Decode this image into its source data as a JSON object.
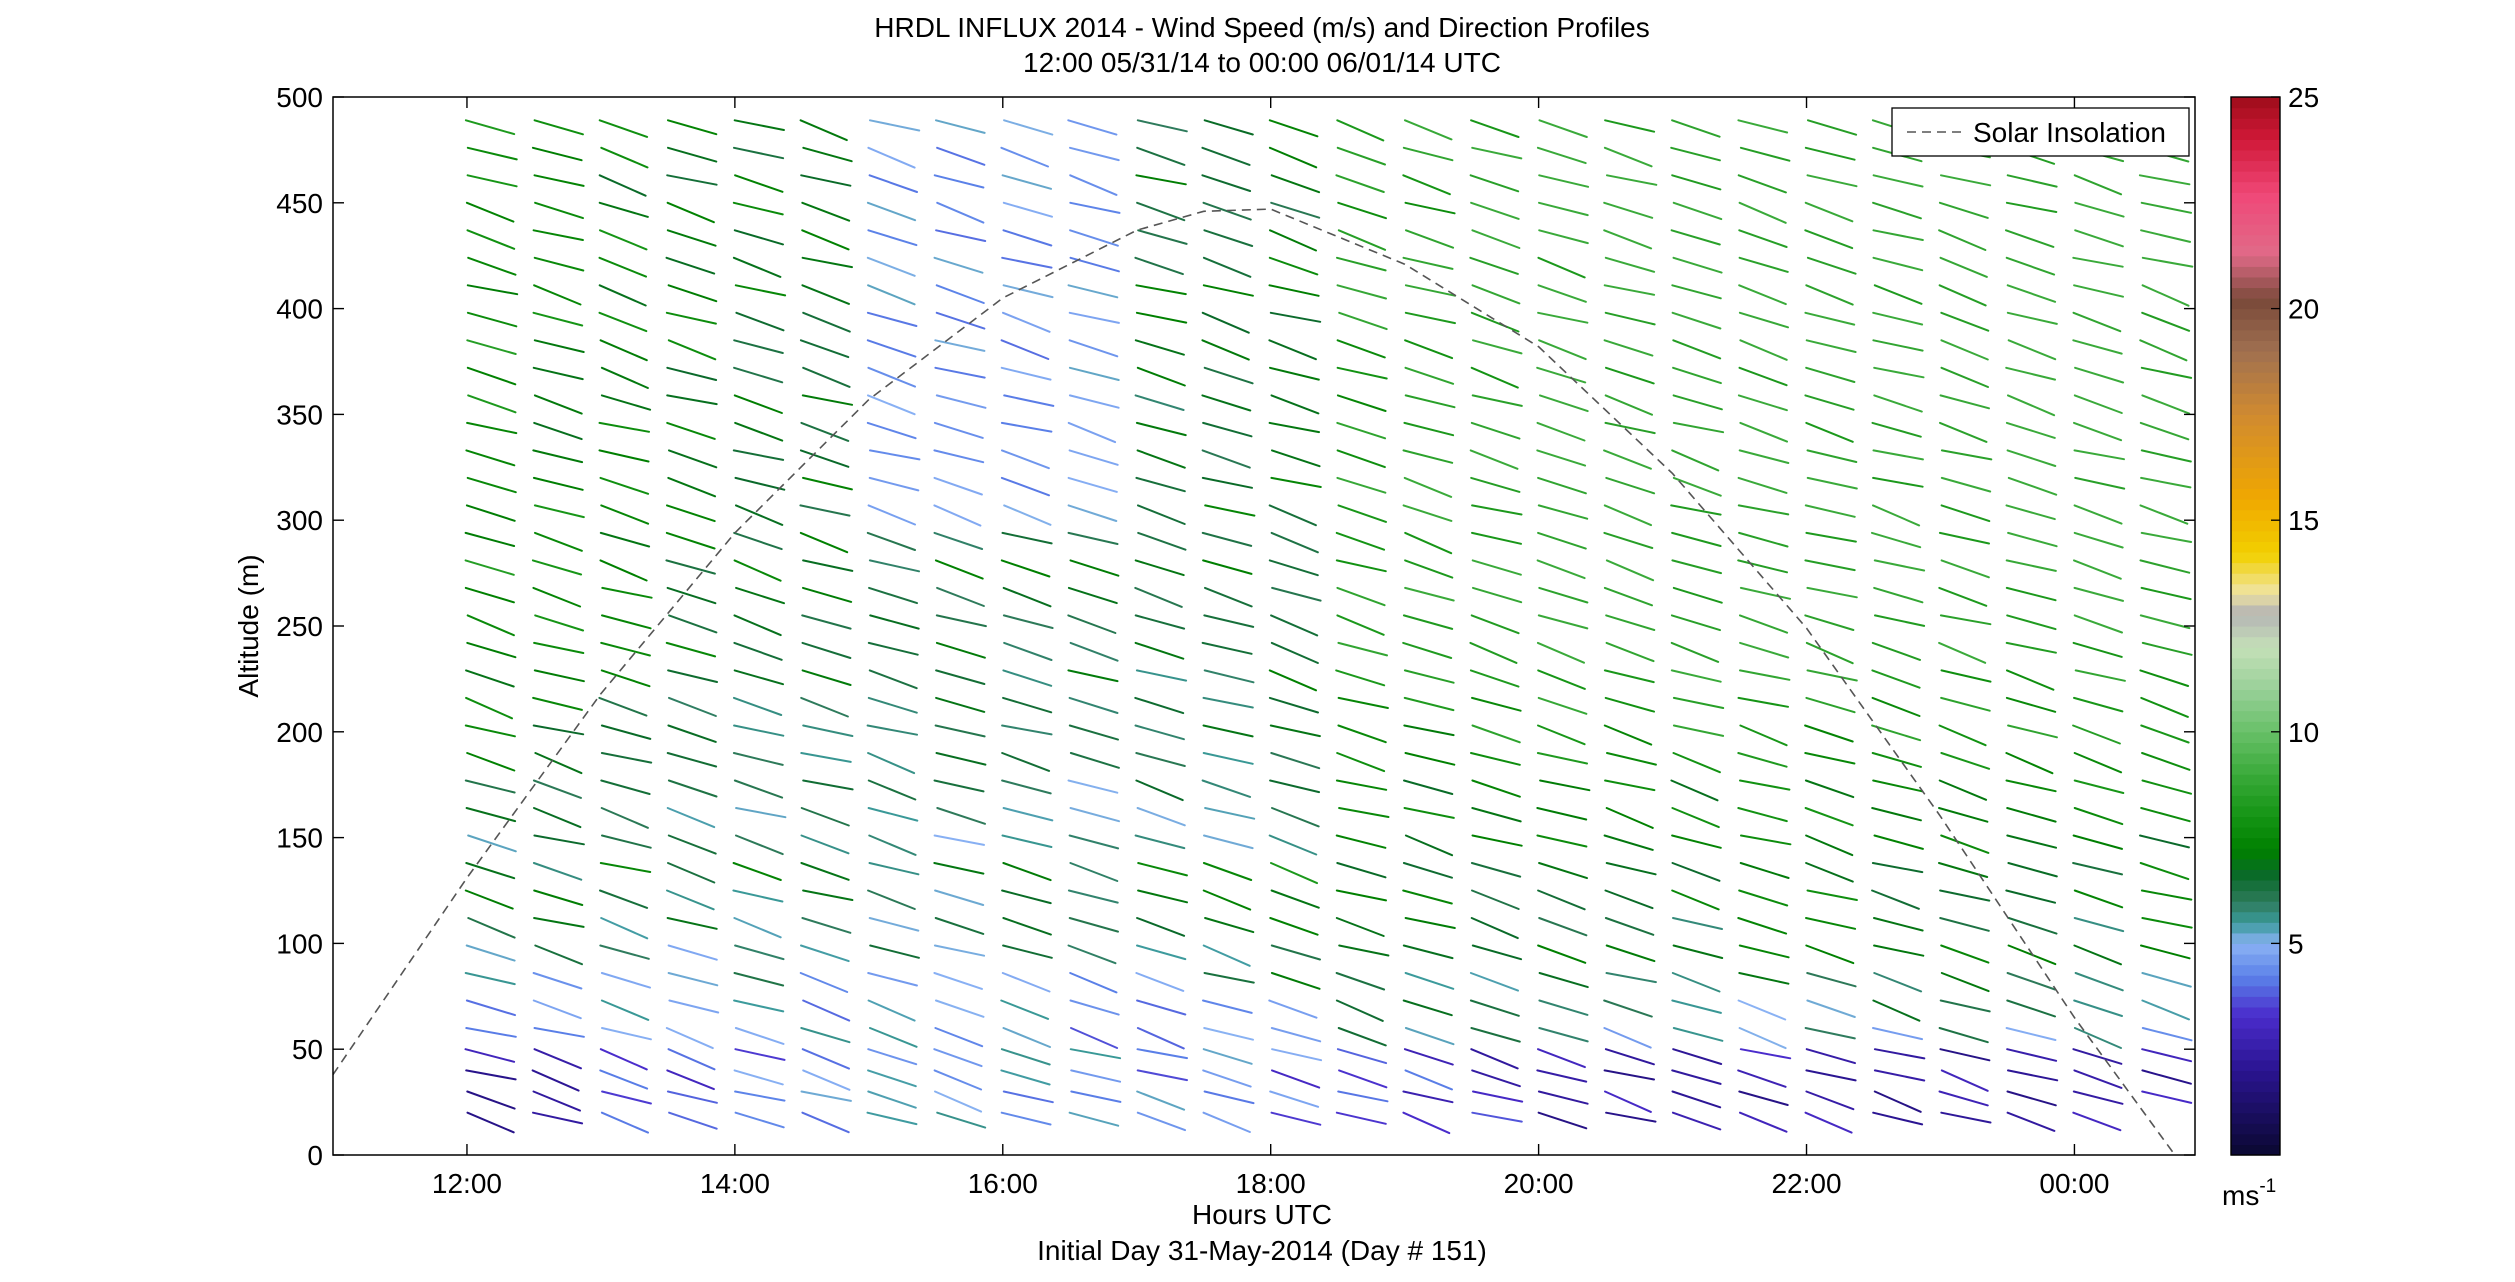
{
  "chart_data": {
    "type": "wind-barb-profile",
    "title": "HRDL INFLUX 2014 - Wind Speed (m/s) and Direction Profiles",
    "subtitle": "12:00 05/31/14 to 00:00 06/01/14  UTC",
    "xlabel": "Hours UTC",
    "xlabel2": "Initial Day 31-May-2014 (Day # 151)",
    "ylabel": "Altitude (m)",
    "x_unit": "hours (UTC, continuous from 00:00 05/31/14)",
    "xlim": [
      11.0,
      24.9
    ],
    "ylim": [
      0,
      500
    ],
    "x_ticks": [
      12,
      14,
      16,
      18,
      20,
      22,
      24
    ],
    "x_tick_labels": [
      "12:00",
      "14:00",
      "16:00",
      "18:00",
      "20:00",
      "22:00",
      "00:00"
    ],
    "y_ticks": [
      0,
      50,
      100,
      150,
      200,
      250,
      300,
      350,
      400,
      450,
      500
    ],
    "y_tick_labels": [
      "0",
      "50",
      "100",
      "150",
      "200",
      "250",
      "300",
      "350",
      "400",
      "450",
      "500"
    ],
    "legend": {
      "entries": [
        "Solar Insolation"
      ],
      "placement": "top-right"
    },
    "colorbar": {
      "range": [
        0,
        25
      ],
      "ticks": [
        5,
        10,
        15,
        20,
        25
      ],
      "tick_labels": [
        "5",
        "10",
        "15",
        "20",
        "25"
      ],
      "unit_label": "ms",
      "unit_exponent": "-1"
    },
    "profile_times": [
      12.0,
      12.5,
      13.0,
      13.5,
      14.0,
      14.5,
      15.0,
      15.5,
      16.0,
      16.5,
      17.0,
      17.5,
      18.0,
      18.5,
      19.0,
      19.5,
      20.0,
      20.5,
      21.0,
      21.5,
      22.0,
      22.5,
      23.0,
      23.5,
      24.0,
      24.5
    ],
    "altitudes": [
      20,
      30,
      40,
      50,
      60,
      73,
      86,
      99,
      112,
      125,
      138,
      151,
      164,
      177,
      190,
      203,
      216,
      229,
      242,
      255,
      268,
      281,
      294,
      307,
      320,
      333,
      346,
      359,
      372,
      385,
      398,
      411,
      424,
      437,
      450,
      463,
      476,
      489
    ],
    "wind_direction_deg_approx": 285,
    "speed_range_m_s": [
      2,
      9
    ],
    "solar_insolation": {
      "style": "dashed",
      "x": [
        11.0,
        12.0,
        13.0,
        14.0,
        15.0,
        16.0,
        17.0,
        17.5,
        18.0,
        19.0,
        20.0,
        21.0,
        22.0,
        23.0,
        24.0,
        24.75
      ],
      "y": [
        38,
        131,
        218,
        294,
        357,
        405,
        437,
        446,
        447,
        421,
        382,
        322,
        249,
        160,
        65,
        0
      ]
    }
  }
}
